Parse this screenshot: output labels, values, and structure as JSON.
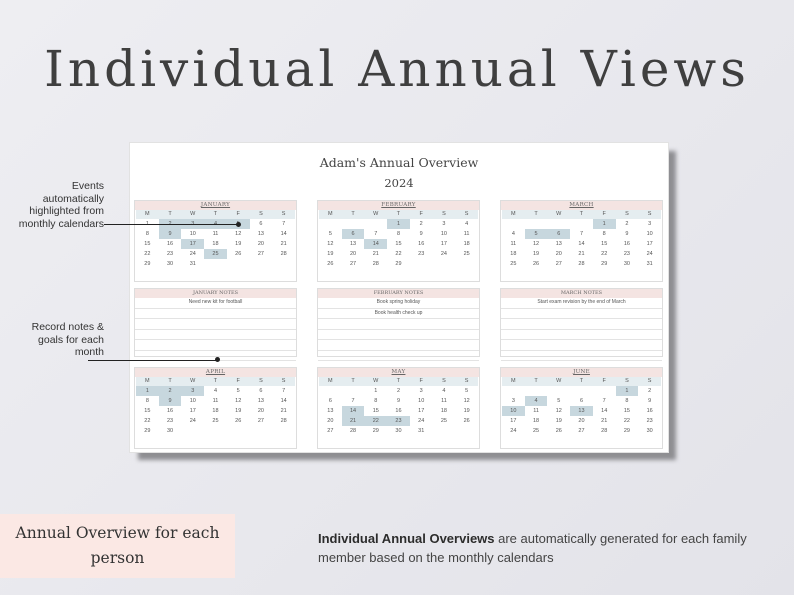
{
  "headline": "Individual Annual Views",
  "sheet": {
    "title": "Adam's Annual Overview",
    "year": "2024"
  },
  "weekday_labels": [
    "M",
    "T",
    "W",
    "T",
    "F",
    "S",
    "S"
  ],
  "months": [
    {
      "name": "JANUARY",
      "offset": 0,
      "days": 31,
      "highlighted": [
        2,
        3,
        4,
        5,
        9,
        17,
        25
      ]
    },
    {
      "name": "FEBRUARY",
      "offset": 3,
      "days": 29,
      "highlighted": [
        1,
        6,
        14
      ]
    },
    {
      "name": "MARCH",
      "offset": 4,
      "days": 31,
      "highlighted": [
        1,
        5,
        6
      ]
    },
    {
      "name": "APRIL",
      "offset": 0,
      "days": 30,
      "highlighted": [
        1,
        2,
        3,
        9
      ]
    },
    {
      "name": "MAY",
      "offset": 2,
      "days": 31,
      "highlighted": [
        14,
        21,
        22,
        23
      ]
    },
    {
      "name": "JUNE",
      "offset": 5,
      "days": 30,
      "highlighted": [
        1,
        4,
        10,
        13
      ]
    }
  ],
  "notes": [
    {
      "title": "JANUARY NOTES",
      "entries": [
        "Need new kit for football"
      ]
    },
    {
      "title": "FEBRUARY NOTES",
      "entries": [
        "Book spring holiday",
        "Book health check up"
      ]
    },
    {
      "title": "MARCH NOTES",
      "entries": [
        "Start exam revision by the end of March"
      ]
    }
  ],
  "callouts": {
    "events": "Events automatically highlighted from monthly calendars",
    "notes": "Record notes & goals for each month"
  },
  "label_box": "Annual Overview for each person",
  "description": {
    "bold": "Individual Annual Overviews",
    "rest": " are automatically generated for each family member based on the monthly calendars"
  }
}
